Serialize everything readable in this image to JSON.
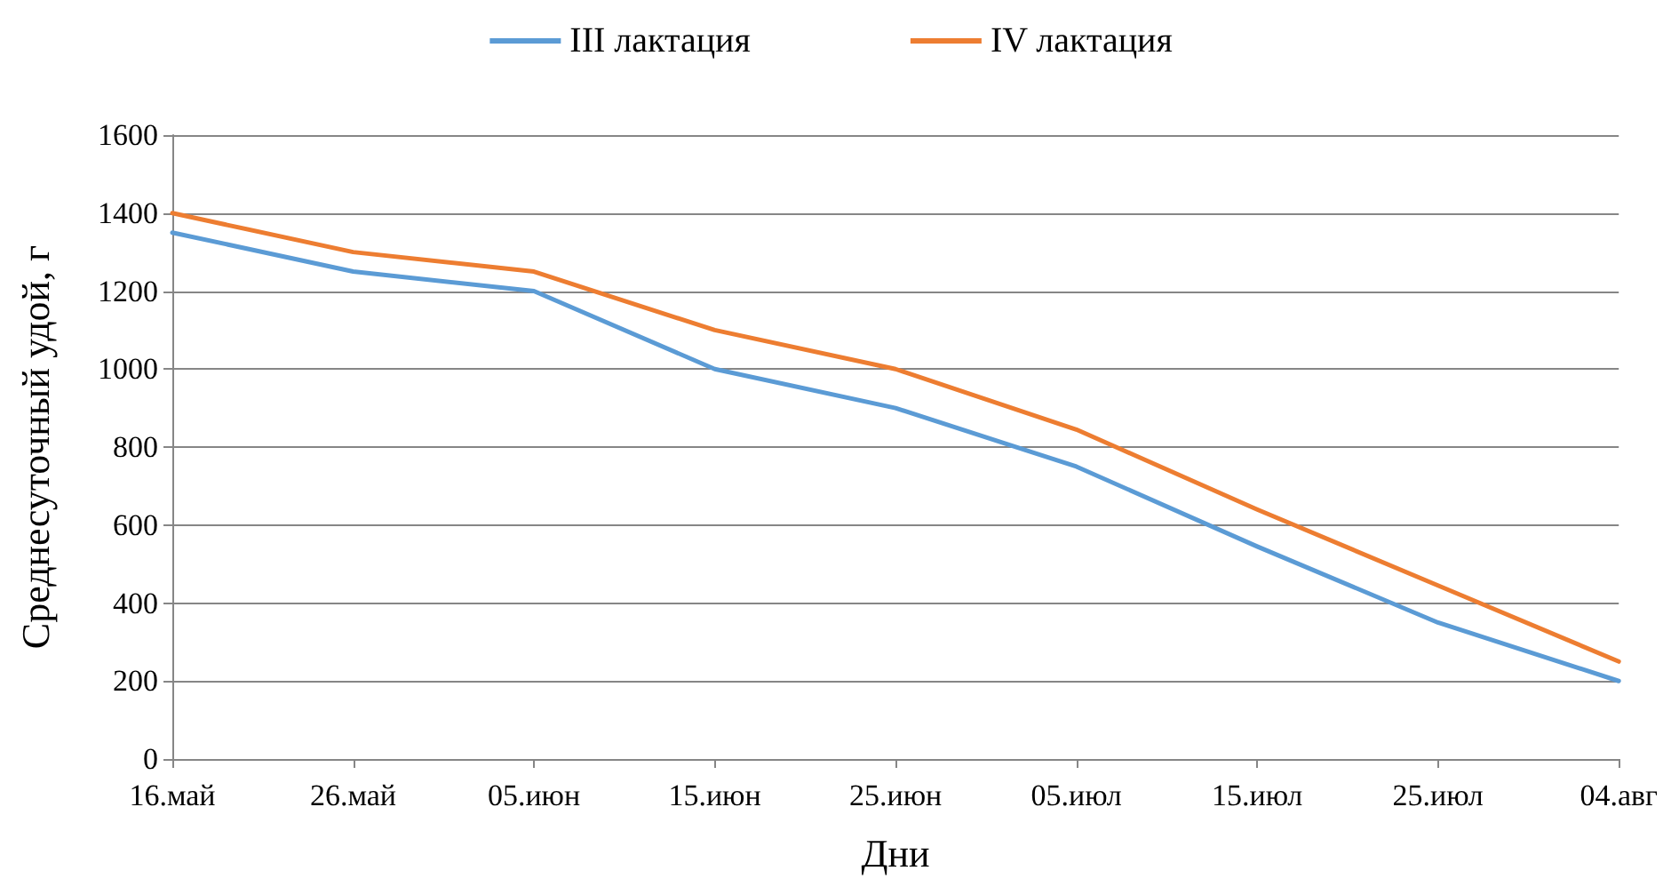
{
  "chart_data": {
    "type": "line",
    "xlabel": "Дни",
    "ylabel": "Среднесуточный удой, г",
    "categories": [
      "16.май",
      "26.май",
      "05.июн",
      "15.июн",
      "25.июн",
      "05.июл",
      "15.июл",
      "25.июл",
      "04.авг"
    ],
    "series": [
      {
        "name": "III лактация",
        "color": "#5b9bd5",
        "values": [
          1350,
          1250,
          1200,
          1000,
          900,
          750,
          545,
          350,
          200
        ]
      },
      {
        "name": "IV лактация",
        "color": "#ed7d31",
        "values": [
          1400,
          1300,
          1250,
          1100,
          1000,
          845,
          640,
          445,
          250
        ]
      }
    ],
    "ylim": [
      0,
      1600
    ],
    "yticks": [
      0,
      200,
      400,
      600,
      800,
      1000,
      1200,
      1400,
      1600
    ],
    "grid": "y",
    "legend": "top",
    "marker": "none",
    "line_style": "solid"
  }
}
